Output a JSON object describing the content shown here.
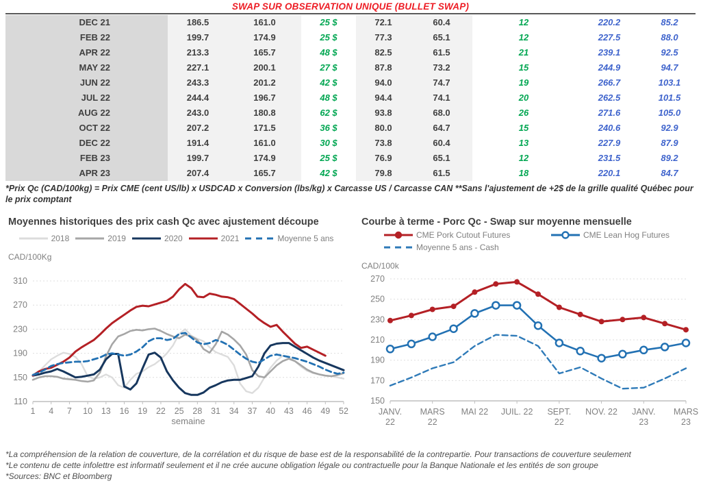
{
  "header": {
    "title": "SWAP SUR OBSERVATION UNIQUE (BULLET SWAP)",
    "title_color": "#ed1c24"
  },
  "table": {
    "colors": {
      "green": "#00a651",
      "blue": "#3e63cc",
      "text": "#404040",
      "date_bg": "#d9d9d9",
      "band_bg": "#f2f2f2"
    },
    "rows": [
      [
        "DEC 21",
        "186.5",
        "161.0",
        "25 $",
        "72.1",
        "60.4",
        "12",
        "220.2",
        "85.2"
      ],
      [
        "FEB 22",
        "199.7",
        "174.9",
        "25 $",
        "77.3",
        "65.1",
        "12",
        "227.5",
        "88.0"
      ],
      [
        "APR 22",
        "213.3",
        "165.7",
        "48 $",
        "82.5",
        "61.5",
        "21",
        "239.1",
        "92.5"
      ],
      [
        "MAY 22",
        "227.1",
        "200.1",
        "27 $",
        "87.8",
        "73.2",
        "15",
        "244.9",
        "94.7"
      ],
      [
        "JUN 22",
        "243.3",
        "201.2",
        "42 $",
        "94.0",
        "74.7",
        "19",
        "266.7",
        "103.1"
      ],
      [
        "JUL 22",
        "244.4",
        "196.7",
        "48 $",
        "94.4",
        "74.1",
        "20",
        "262.5",
        "101.5"
      ],
      [
        "AUG 22",
        "243.0",
        "180.8",
        "62 $",
        "93.8",
        "68.0",
        "26",
        "271.6",
        "105.0"
      ],
      [
        "OCT 22",
        "207.2",
        "171.5",
        "36 $",
        "80.0",
        "64.7",
        "15",
        "240.6",
        "92.9"
      ],
      [
        "DEC 22",
        "191.4",
        "161.0",
        "30 $",
        "73.8",
        "60.4",
        "13",
        "227.9",
        "87.9"
      ],
      [
        "FEB 23",
        "199.7",
        "174.9",
        "25 $",
        "76.9",
        "65.1",
        "12",
        "231.5",
        "89.2"
      ],
      [
        "APR 23",
        "207.4",
        "165.7",
        "42 $",
        "79.8",
        "61.5",
        "18",
        "220.1",
        "84.7"
      ]
    ]
  },
  "notes": {
    "formula": "*Prix Qc (CAD/100kg) = Prix CME (cent US/lb) x USDCAD x Conversion (lbs/kg) x Carcasse US / Carcasse CAN **Sans l'ajustement de +2$ de la grille qualité Québec pour le prix comptant",
    "disclaimer1": "*La compréhension de la relation de couverture, de la corrélation et du risque de base est de la responsabilité de la contrepartie. Pour transactions de couverture seulement",
    "disclaimer2": "*Le contenu de cette infolettre est informatif seulement et il ne crée aucune obligation légale ou contractuelle pour la Banque Nationale et les entités de son groupe",
    "sources": "*Sources: BNC et Bloomberg"
  },
  "chart_data": [
    {
      "type": "line",
      "title": "Moyennes historiques des prix cash Qc avec ajustement découpe",
      "unit_label": "CAD/100Kg",
      "xlabel": "semaine",
      "xlim": [
        1,
        52
      ],
      "xticks": [
        1,
        4,
        7,
        10,
        13,
        16,
        19,
        22,
        25,
        28,
        31,
        34,
        37,
        40,
        43,
        46,
        49,
        52
      ],
      "ylim": [
        110,
        310
      ],
      "yticks": [
        110,
        150,
        190,
        230,
        270,
        310
      ],
      "grid": "horizontal-dashed",
      "legend_position": "top-center",
      "series": [
        {
          "name": "2018",
          "color": "#dcdcdc",
          "style": "solid",
          "marker": "none",
          "width": 2.4,
          "values": [
            155,
            160,
            170,
            180,
            186,
            191,
            189,
            184,
            172,
            152,
            148,
            150,
            155,
            150,
            137,
            133,
            146,
            156,
            160,
            167,
            172,
            180,
            190,
            203,
            222,
            230,
            219,
            214,
            210,
            200,
            192,
            188,
            184,
            170,
            140,
            127,
            124,
            133,
            150,
            166,
            178,
            186,
            183,
            177,
            168,
            161,
            157,
            155,
            153,
            152,
            150,
            148
          ]
        },
        {
          "name": "2019",
          "color": "#a6a6a6",
          "style": "solid",
          "marker": "none",
          "width": 2.6,
          "values": [
            146,
            150,
            152,
            152,
            151,
            148,
            147,
            146,
            144,
            143,
            145,
            158,
            185,
            205,
            218,
            222,
            227,
            229,
            228,
            230,
            231,
            227,
            222,
            218,
            215,
            221,
            218,
            212,
            197,
            191,
            205,
            226,
            221,
            213,
            203,
            188,
            162,
            152,
            150,
            160,
            170,
            177,
            181,
            177,
            170,
            163,
            158,
            155,
            153,
            152,
            154,
            157
          ]
        },
        {
          "name": "2020",
          "color": "#17375e",
          "style": "solid",
          "marker": "none",
          "width": 3,
          "values": [
            153,
            155,
            158,
            160,
            164,
            160,
            155,
            150,
            151,
            153,
            155,
            163,
            180,
            189,
            189,
            135,
            130,
            140,
            165,
            188,
            191,
            183,
            160,
            145,
            133,
            124,
            121,
            121,
            125,
            133,
            137,
            142,
            145,
            146,
            146,
            149,
            152,
            168,
            190,
            203,
            206,
            207,
            207,
            201,
            195,
            189,
            183,
            178,
            174,
            170,
            166,
            162
          ]
        },
        {
          "name": "2021",
          "color": "#b42025",
          "style": "solid",
          "marker": "none",
          "width": 3,
          "values": [
            153,
            160,
            164,
            166,
            171,
            176,
            183,
            193,
            200,
            206,
            212,
            221,
            231,
            240,
            247,
            254,
            261,
            267,
            269,
            268,
            271,
            274,
            277,
            284,
            296,
            305,
            298,
            284,
            283,
            289,
            287,
            284,
            283,
            280,
            272,
            264,
            256,
            247,
            240,
            234,
            237,
            226,
            216,
            206,
            199,
            201,
            196,
            191,
            186,
            null,
            null,
            null
          ]
        },
        {
          "name": "Moyenne 5 ans",
          "color": "#2271b3",
          "style": "dashed",
          "marker": "none",
          "width": 2.8,
          "values": [
            154,
            158,
            163,
            169,
            172,
            174,
            175,
            176,
            176,
            177,
            180,
            183,
            188,
            190,
            188,
            186,
            188,
            193,
            200,
            210,
            215,
            215,
            212,
            214,
            222,
            224,
            216,
            208,
            205,
            207,
            212,
            209,
            204,
            196,
            188,
            181,
            176,
            174,
            180,
            186,
            188,
            186,
            184,
            182,
            179,
            176,
            172,
            168,
            163,
            159,
            156,
            158
          ]
        }
      ]
    },
    {
      "type": "line",
      "title": "Courbe à terme - Porc Qc - Swap sur moyenne mensuelle",
      "unit_label": "CAD/100k",
      "n_points": 15,
      "x_tick_labels": [
        {
          "pos": 0,
          "lines": [
            "JANV.",
            "22"
          ]
        },
        {
          "pos": 2,
          "lines": [
            "MARS",
            "22"
          ]
        },
        {
          "pos": 4,
          "lines": [
            "MAI 22"
          ]
        },
        {
          "pos": 6,
          "lines": [
            "JUIL. 22"
          ]
        },
        {
          "pos": 8,
          "lines": [
            "SEPT.",
            "22"
          ]
        },
        {
          "pos": 10,
          "lines": [
            "NOV. 22"
          ]
        },
        {
          "pos": 12,
          "lines": [
            "JANV.",
            "23"
          ]
        },
        {
          "pos": 14,
          "lines": [
            "MARS",
            "23"
          ]
        }
      ],
      "ylim": [
        150,
        270
      ],
      "yticks": [
        150,
        170,
        190,
        210,
        230,
        250,
        270
      ],
      "grid": "horizontal-dashed",
      "legend_position": "top-left-two-rows",
      "legend_rows": [
        [
          0,
          1
        ],
        [
          2
        ]
      ],
      "series": [
        {
          "name": "CME Pork Cutout Futures",
          "color": "#b42025",
          "style": "solid",
          "marker": "dot",
          "width": 3,
          "values": [
            229,
            234,
            240,
            243,
            257,
            265,
            267,
            255,
            242,
            235,
            228,
            230,
            232,
            226,
            220
          ]
        },
        {
          "name": "CME Lean Hog Futures",
          "color": "#2271b3",
          "style": "solid",
          "marker": "ring",
          "width": 2.6,
          "values": [
            201,
            206,
            213,
            221,
            236,
            244,
            244,
            224,
            207,
            199,
            192,
            196,
            200,
            203,
            207
          ]
        },
        {
          "name": "Moyenne 5 ans - Cash",
          "color": "#2e7ab8",
          "style": "dashed",
          "marker": "none",
          "width": 2.4,
          "values": [
            165,
            173,
            182,
            188,
            204,
            215,
            214,
            204,
            177,
            183,
            172,
            162,
            163,
            172,
            182
          ]
        }
      ]
    }
  ]
}
